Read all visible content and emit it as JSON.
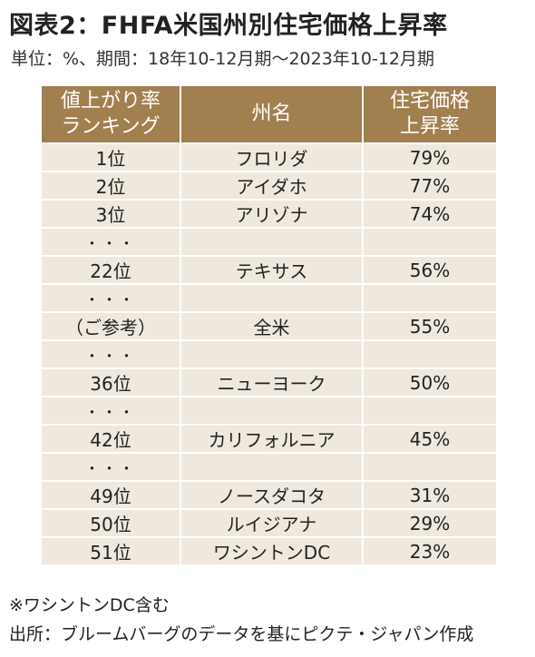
{
  "title": "図表2：FHFA米国州別住宅価格上昇率",
  "subtitle": "単位：%、期間：18年10-12月期～2023年10-12月期",
  "chart_data": {
    "type": "table",
    "headers": [
      "値上がり率\nランキング",
      "州名",
      "住宅価格\n上昇率"
    ],
    "rows": [
      {
        "rank": "1位",
        "state": "フロリダ",
        "value": "79%"
      },
      {
        "rank": "2位",
        "state": "アイダホ",
        "value": "77%"
      },
      {
        "rank": "3位",
        "state": "アリゾナ",
        "value": "74%"
      },
      {
        "rank": "・・・",
        "state": "",
        "value": ""
      },
      {
        "rank": "22位",
        "state": "テキサス",
        "value": "56%"
      },
      {
        "rank": "・・・",
        "state": "",
        "value": ""
      },
      {
        "rank": "（ご参考）",
        "state": "全米",
        "value": "55%"
      },
      {
        "rank": "・・・",
        "state": "",
        "value": ""
      },
      {
        "rank": "36位",
        "state": "ニューヨーク",
        "value": "50%"
      },
      {
        "rank": "・・・",
        "state": "",
        "value": ""
      },
      {
        "rank": "42位",
        "state": "カリフォルニア",
        "value": "45%"
      },
      {
        "rank": "・・・",
        "state": "",
        "value": ""
      },
      {
        "rank": "49位",
        "state": "ノースダコタ",
        "value": "31%"
      },
      {
        "rank": "50位",
        "state": "ルイジアナ",
        "value": "29%"
      },
      {
        "rank": "51位",
        "state": "ワシントンDC",
        "value": "23%"
      }
    ]
  },
  "note": "※ワシントンDC含む",
  "source": "出所：ブルームバーグのデータを基にピクテ・ジャパン作成",
  "colors": {
    "header_bg": "#a27f4f",
    "row_bg": "#efe8dd"
  }
}
